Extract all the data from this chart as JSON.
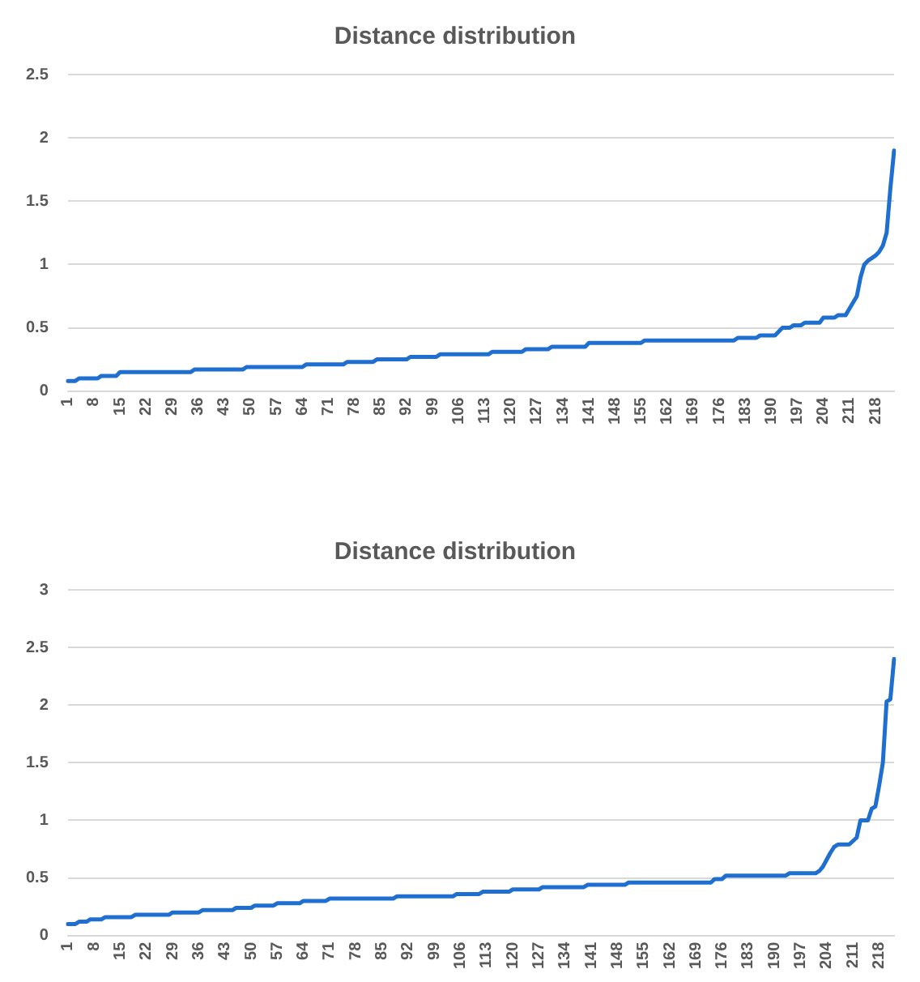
{
  "chart_data": [
    {
      "type": "line",
      "title": "Distance distribution",
      "color": "#1f6fd1",
      "grid": "y",
      "legend": false,
      "marker": "none",
      "ylim": [
        0,
        2.5
      ],
      "yticks": [
        0,
        0.5,
        1,
        1.5,
        2,
        2.5
      ],
      "categories": [
        "1",
        null,
        null,
        null,
        null,
        null,
        null,
        "8",
        null,
        null,
        null,
        null,
        null,
        null,
        "15",
        null,
        null,
        null,
        null,
        null,
        null,
        "22",
        null,
        null,
        null,
        null,
        null,
        null,
        "29",
        null,
        null,
        null,
        null,
        null,
        null,
        "36",
        null,
        null,
        null,
        null,
        null,
        null,
        "43",
        null,
        null,
        null,
        null,
        null,
        null,
        "50",
        null,
        null,
        null,
        null,
        null,
        null,
        "57",
        null,
        null,
        null,
        null,
        null,
        null,
        "64",
        null,
        null,
        null,
        null,
        null,
        null,
        "71",
        null,
        null,
        null,
        null,
        null,
        null,
        "78",
        null,
        null,
        null,
        null,
        null,
        null,
        "85",
        null,
        null,
        null,
        null,
        null,
        null,
        "92",
        null,
        null,
        null,
        null,
        null,
        null,
        "99",
        null,
        null,
        null,
        null,
        null,
        null,
        "106",
        null,
        null,
        null,
        null,
        null,
        null,
        "113",
        null,
        null,
        null,
        null,
        null,
        null,
        "120",
        null,
        null,
        null,
        null,
        null,
        null,
        "127",
        null,
        null,
        null,
        null,
        null,
        null,
        "134",
        null,
        null,
        null,
        null,
        null,
        null,
        "141",
        null,
        null,
        null,
        null,
        null,
        null,
        "148",
        null,
        null,
        null,
        null,
        null,
        null,
        "155",
        null,
        null,
        null,
        null,
        null,
        null,
        "162",
        null,
        null,
        null,
        null,
        null,
        null,
        "169",
        null,
        null,
        null,
        null,
        null,
        null,
        "176",
        null,
        null,
        null,
        null,
        null,
        null,
        "183",
        null,
        null,
        null,
        null,
        null,
        null,
        "190",
        null,
        null,
        null,
        null,
        null,
        null,
        "197",
        null,
        null,
        null,
        null,
        null,
        null,
        "204",
        null,
        null,
        null,
        null,
        null,
        null,
        "211",
        null,
        null,
        null,
        null,
        null,
        null,
        "218",
        null,
        null,
        null,
        null,
        null
      ],
      "values": [
        0.08,
        0.08,
        0.08,
        0.1,
        0.1,
        0.1,
        0.1,
        0.1,
        0.1,
        0.12,
        0.12,
        0.12,
        0.12,
        0.12,
        0.15,
        0.15,
        0.15,
        0.15,
        0.15,
        0.15,
        0.15,
        0.15,
        0.15,
        0.15,
        0.15,
        0.15,
        0.15,
        0.15,
        0.15,
        0.15,
        0.15,
        0.15,
        0.15,
        0.15,
        0.17,
        0.17,
        0.17,
        0.17,
        0.17,
        0.17,
        0.17,
        0.17,
        0.17,
        0.17,
        0.17,
        0.17,
        0.17,
        0.17,
        0.19,
        0.19,
        0.19,
        0.19,
        0.19,
        0.19,
        0.19,
        0.19,
        0.19,
        0.19,
        0.19,
        0.19,
        0.19,
        0.19,
        0.19,
        0.19,
        0.21,
        0.21,
        0.21,
        0.21,
        0.21,
        0.21,
        0.21,
        0.21,
        0.21,
        0.21,
        0.21,
        0.23,
        0.23,
        0.23,
        0.23,
        0.23,
        0.23,
        0.23,
        0.23,
        0.25,
        0.25,
        0.25,
        0.25,
        0.25,
        0.25,
        0.25,
        0.25,
        0.25,
        0.27,
        0.27,
        0.27,
        0.27,
        0.27,
        0.27,
        0.27,
        0.27,
        0.29,
        0.29,
        0.29,
        0.29,
        0.29,
        0.29,
        0.29,
        0.29,
        0.29,
        0.29,
        0.29,
        0.29,
        0.29,
        0.29,
        0.31,
        0.31,
        0.31,
        0.31,
        0.31,
        0.31,
        0.31,
        0.31,
        0.31,
        0.33,
        0.33,
        0.33,
        0.33,
        0.33,
        0.33,
        0.33,
        0.35,
        0.35,
        0.35,
        0.35,
        0.35,
        0.35,
        0.35,
        0.35,
        0.35,
        0.35,
        0.38,
        0.38,
        0.38,
        0.38,
        0.38,
        0.38,
        0.38,
        0.38,
        0.38,
        0.38,
        0.38,
        0.38,
        0.38,
        0.38,
        0.38,
        0.4,
        0.4,
        0.4,
        0.4,
        0.4,
        0.4,
        0.4,
        0.4,
        0.4,
        0.4,
        0.4,
        0.4,
        0.4,
        0.4,
        0.4,
        0.4,
        0.4,
        0.4,
        0.4,
        0.4,
        0.4,
        0.4,
        0.4,
        0.4,
        0.4,
        0.42,
        0.42,
        0.42,
        0.42,
        0.42,
        0.42,
        0.44,
        0.44,
        0.44,
        0.44,
        0.44,
        0.47,
        0.5,
        0.5,
        0.5,
        0.52,
        0.52,
        0.52,
        0.54,
        0.54,
        0.54,
        0.54,
        0.54,
        0.58,
        0.58,
        0.58,
        0.58,
        0.6,
        0.6,
        0.6,
        0.65,
        0.7,
        0.75,
        0.9,
        1,
        1.03,
        1.05,
        1.07,
        1.1,
        1.15,
        1.25,
        1.6,
        1.9
      ]
    },
    {
      "type": "line",
      "title": "Distance distribution",
      "color": "#1f6fd1",
      "grid": "y",
      "legend": false,
      "marker": "none",
      "ylim": [
        0,
        3
      ],
      "yticks": [
        0,
        0.5,
        1,
        1.5,
        2,
        2.5,
        3
      ],
      "categories": [
        "1",
        null,
        null,
        null,
        null,
        null,
        null,
        "8",
        null,
        null,
        null,
        null,
        null,
        null,
        "15",
        null,
        null,
        null,
        null,
        null,
        null,
        "22",
        null,
        null,
        null,
        null,
        null,
        null,
        "29",
        null,
        null,
        null,
        null,
        null,
        null,
        "36",
        null,
        null,
        null,
        null,
        null,
        null,
        "43",
        null,
        null,
        null,
        null,
        null,
        null,
        "50",
        null,
        null,
        null,
        null,
        null,
        null,
        "57",
        null,
        null,
        null,
        null,
        null,
        null,
        "64",
        null,
        null,
        null,
        null,
        null,
        null,
        "71",
        null,
        null,
        null,
        null,
        null,
        null,
        "78",
        null,
        null,
        null,
        null,
        null,
        null,
        "85",
        null,
        null,
        null,
        null,
        null,
        null,
        "92",
        null,
        null,
        null,
        null,
        null,
        null,
        "99",
        null,
        null,
        null,
        null,
        null,
        null,
        "106",
        null,
        null,
        null,
        null,
        null,
        null,
        "113",
        null,
        null,
        null,
        null,
        null,
        null,
        "120",
        null,
        null,
        null,
        null,
        null,
        null,
        "127",
        null,
        null,
        null,
        null,
        null,
        null,
        "134",
        null,
        null,
        null,
        null,
        null,
        null,
        "141",
        null,
        null,
        null,
        null,
        null,
        null,
        "148",
        null,
        null,
        null,
        null,
        null,
        null,
        "155",
        null,
        null,
        null,
        null,
        null,
        null,
        "162",
        null,
        null,
        null,
        null,
        null,
        null,
        "169",
        null,
        null,
        null,
        null,
        null,
        null,
        "176",
        null,
        null,
        null,
        null,
        null,
        null,
        "183",
        null,
        null,
        null,
        null,
        null,
        null,
        "190",
        null,
        null,
        null,
        null,
        null,
        null,
        "197",
        null,
        null,
        null,
        null,
        null,
        null,
        "204",
        null,
        null,
        null,
        null,
        null,
        null,
        "211",
        null,
        null,
        null,
        null,
        null,
        null,
        "218",
        null,
        null,
        null,
        null
      ],
      "values": [
        0.1,
        0.1,
        0.1,
        0.12,
        0.12,
        0.12,
        0.14,
        0.14,
        0.14,
        0.14,
        0.16,
        0.16,
        0.16,
        0.16,
        0.16,
        0.16,
        0.16,
        0.16,
        0.18,
        0.18,
        0.18,
        0.18,
        0.18,
        0.18,
        0.18,
        0.18,
        0.18,
        0.18,
        0.2,
        0.2,
        0.2,
        0.2,
        0.2,
        0.2,
        0.2,
        0.2,
        0.22,
        0.22,
        0.22,
        0.22,
        0.22,
        0.22,
        0.22,
        0.22,
        0.22,
        0.24,
        0.24,
        0.24,
        0.24,
        0.24,
        0.26,
        0.26,
        0.26,
        0.26,
        0.26,
        0.26,
        0.28,
        0.28,
        0.28,
        0.28,
        0.28,
        0.28,
        0.28,
        0.3,
        0.3,
        0.3,
        0.3,
        0.3,
        0.3,
        0.3,
        0.32,
        0.32,
        0.32,
        0.32,
        0.32,
        0.32,
        0.32,
        0.32,
        0.32,
        0.32,
        0.32,
        0.32,
        0.32,
        0.32,
        0.32,
        0.32,
        0.32,
        0.32,
        0.34,
        0.34,
        0.34,
        0.34,
        0.34,
        0.34,
        0.34,
        0.34,
        0.34,
        0.34,
        0.34,
        0.34,
        0.34,
        0.34,
        0.34,
        0.34,
        0.36,
        0.36,
        0.36,
        0.36,
        0.36,
        0.36,
        0.36,
        0.38,
        0.38,
        0.38,
        0.38,
        0.38,
        0.38,
        0.38,
        0.38,
        0.4,
        0.4,
        0.4,
        0.4,
        0.4,
        0.4,
        0.4,
        0.4,
        0.42,
        0.42,
        0.42,
        0.42,
        0.42,
        0.42,
        0.42,
        0.42,
        0.42,
        0.42,
        0.42,
        0.42,
        0.44,
        0.44,
        0.44,
        0.44,
        0.44,
        0.44,
        0.44,
        0.44,
        0.44,
        0.44,
        0.44,
        0.46,
        0.46,
        0.46,
        0.46,
        0.46,
        0.46,
        0.46,
        0.46,
        0.46,
        0.46,
        0.46,
        0.46,
        0.46,
        0.46,
        0.46,
        0.46,
        0.46,
        0.46,
        0.46,
        0.46,
        0.46,
        0.46,
        0.46,
        0.49,
        0.49,
        0.49,
        0.52,
        0.52,
        0.52,
        0.52,
        0.52,
        0.52,
        0.52,
        0.52,
        0.52,
        0.52,
        0.52,
        0.52,
        0.52,
        0.52,
        0.52,
        0.52,
        0.52,
        0.54,
        0.54,
        0.54,
        0.54,
        0.54,
        0.54,
        0.54,
        0.54,
        0.56,
        0.6,
        0.66,
        0.72,
        0.77,
        0.79,
        0.79,
        0.79,
        0.79,
        0.82,
        0.85,
        1,
        1,
        1,
        1.1,
        1.12,
        1.3,
        1.5,
        2.03,
        2.05,
        2.4
      ]
    }
  ]
}
